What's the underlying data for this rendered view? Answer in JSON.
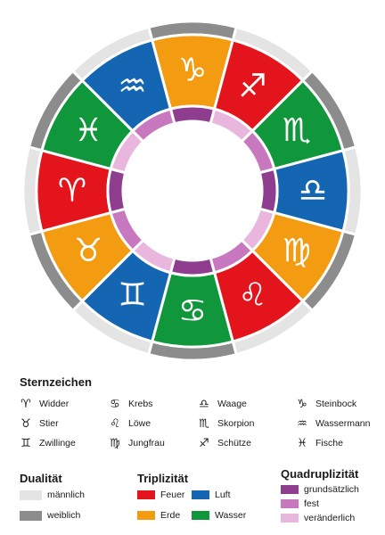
{
  "wheel": {
    "signs": [
      {
        "glyph": "♑",
        "name": "Steinbock",
        "element": "earth",
        "duality": "female",
        "quality": "cardinal"
      },
      {
        "glyph": "♐",
        "name": "Schütze",
        "element": "fire",
        "duality": "male",
        "quality": "mutable"
      },
      {
        "glyph": "♏",
        "name": "Skorpion",
        "element": "water",
        "duality": "female",
        "quality": "fixed"
      },
      {
        "glyph": "♎",
        "name": "Waage",
        "element": "air",
        "duality": "male",
        "quality": "cardinal"
      },
      {
        "glyph": "♍",
        "name": "Jungfrau",
        "element": "earth",
        "duality": "female",
        "quality": "mutable"
      },
      {
        "glyph": "♌",
        "name": "Löwe",
        "element": "fire",
        "duality": "male",
        "quality": "fixed"
      },
      {
        "glyph": "♋",
        "name": "Krebs",
        "element": "water",
        "duality": "female",
        "quality": "cardinal"
      },
      {
        "glyph": "♊",
        "name": "Zwillinge",
        "element": "air",
        "duality": "male",
        "quality": "mutable"
      },
      {
        "glyph": "♉",
        "name": "Stier",
        "element": "earth",
        "duality": "female",
        "quality": "fixed"
      },
      {
        "glyph": "♈",
        "name": "Widder",
        "element": "fire",
        "duality": "male",
        "quality": "cardinal"
      },
      {
        "glyph": "♓",
        "name": "Fische",
        "element": "water",
        "duality": "female",
        "quality": "mutable"
      },
      {
        "glyph": "♒",
        "name": "Wassermann",
        "element": "air",
        "duality": "male",
        "quality": "fixed"
      }
    ]
  },
  "colors": {
    "fire": "#e3141c",
    "earth": "#f39c12",
    "air": "#1466b3",
    "water": "#10973b",
    "male": "#e4e4e4",
    "female": "#8c8c8c",
    "cardinal": "#8f3d8e",
    "fixed": "#c878be",
    "mutable": "#e9b6dd",
    "ring_bg": "#ffffff"
  },
  "legend": {
    "title": "Sternzeichen",
    "signs": [
      {
        "glyph": "♈",
        "label": "Widder"
      },
      {
        "glyph": "♉",
        "label": "Stier"
      },
      {
        "glyph": "♊",
        "label": "Zwillinge"
      },
      {
        "glyph": "♋",
        "label": "Krebs"
      },
      {
        "glyph": "♌",
        "label": "Löwe"
      },
      {
        "glyph": "♍",
        "label": "Jungfrau"
      },
      {
        "glyph": "♎",
        "label": "Waage"
      },
      {
        "glyph": "♏",
        "label": "Skorpion"
      },
      {
        "glyph": "♐",
        "label": "Schütze"
      },
      {
        "glyph": "♑",
        "label": "Steinbock"
      },
      {
        "glyph": "♒",
        "label": "Wassermann"
      },
      {
        "glyph": "♓",
        "label": "Fische"
      }
    ]
  },
  "duality": {
    "title": "Dualität",
    "male": "männlich",
    "female": "weiblich"
  },
  "triplicity": {
    "title": "Triplizität",
    "fire": "Feuer",
    "earth": "Erde",
    "air": "Luft",
    "water": "Wasser"
  },
  "quadruplicity": {
    "title": "Quadruplizität",
    "cardinal": "grundsätzlich",
    "fixed": "fest",
    "mutable": "veränderlich"
  }
}
